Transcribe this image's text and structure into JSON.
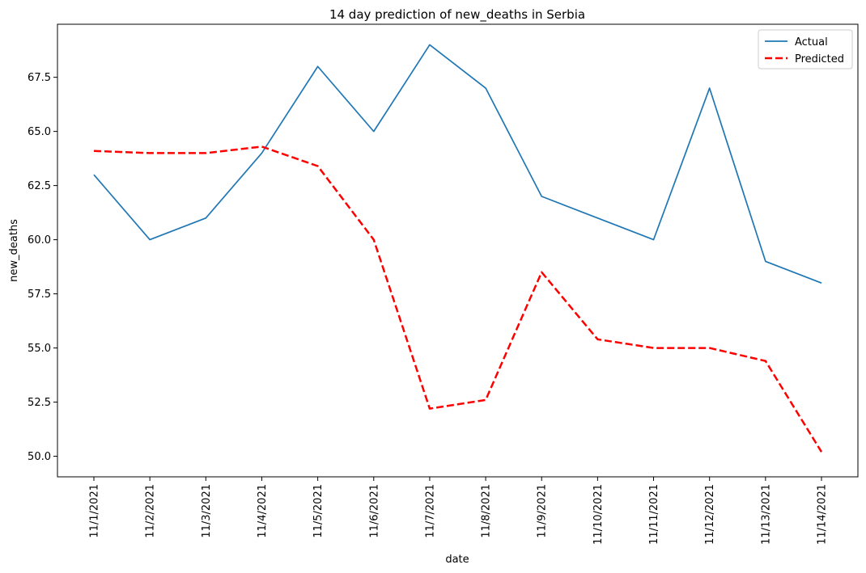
{
  "chart_data": {
    "type": "line",
    "title": "14 day prediction of new_deaths in Serbia",
    "xlabel": "date",
    "ylabel": "new_deaths",
    "categories": [
      "11/1/2021",
      "11/2/2021",
      "11/3/2021",
      "11/4/2021",
      "11/5/2021",
      "11/6/2021",
      "11/7/2021",
      "11/8/2021",
      "11/9/2021",
      "11/10/2021",
      "11/11/2021",
      "11/12/2021",
      "11/13/2021",
      "11/14/2021"
    ],
    "yticks": [
      "50.0",
      "52.5",
      "55.0",
      "57.5",
      "60.0",
      "62.5",
      "65.0",
      "67.5"
    ],
    "ylim": [
      49.05,
      69.95
    ],
    "grid": false,
    "legend_position": "top-right",
    "series": [
      {
        "name": "Actual",
        "color": "#1f77b4",
        "style": "solid",
        "values": [
          63,
          60,
          61,
          64,
          68,
          65,
          69,
          67,
          62,
          61,
          60,
          67,
          59,
          58
        ]
      },
      {
        "name": "Predicted",
        "color": "#ff0000",
        "style": "dashed",
        "values": [
          64.1,
          64.0,
          64.0,
          64.3,
          63.4,
          60.0,
          52.2,
          52.6,
          58.5,
          55.4,
          55.0,
          55.0,
          54.4,
          50.2
        ]
      }
    ]
  }
}
